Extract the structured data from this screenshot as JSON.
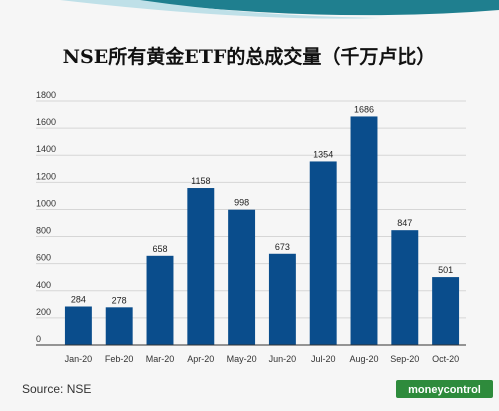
{
  "chart_data": {
    "type": "bar",
    "title": "NSE所有黄金ETF的总成交量（千万卢比）",
    "categories": [
      "Jan-20",
      "Feb-20",
      "Mar-20",
      "Apr-20",
      "May-20",
      "Jun-20",
      "Jul-20",
      "Aug-20",
      "Sep-20",
      "Oct-20"
    ],
    "values": [
      284,
      278,
      658,
      1158,
      998,
      673,
      1354,
      1686,
      847,
      501
    ],
    "value_labels": [
      "284",
      "278",
      "658",
      "1158",
      "998",
      "673",
      "1354",
      "1686",
      "847",
      "501"
    ],
    "ylim": [
      0,
      1800
    ],
    "yticks": [
      0,
      200,
      400,
      600,
      800,
      1000,
      1200,
      1400,
      1600,
      1800
    ],
    "ytick_labels": [
      "0",
      "200",
      "400",
      "600",
      "800",
      "1000",
      "1200",
      "1400",
      "1600",
      "1800"
    ],
    "grid": true,
    "xlabel": "",
    "ylabel": "",
    "bar_color": "#0a4d8c"
  },
  "source_text": "Source: NSE",
  "logo": {
    "text": "moneycontrol",
    "color": "#2e8b3c"
  },
  "colors": {
    "header_teal": "#1f7f8f",
    "grid": "#d6d6d6",
    "axis": "#333333"
  }
}
